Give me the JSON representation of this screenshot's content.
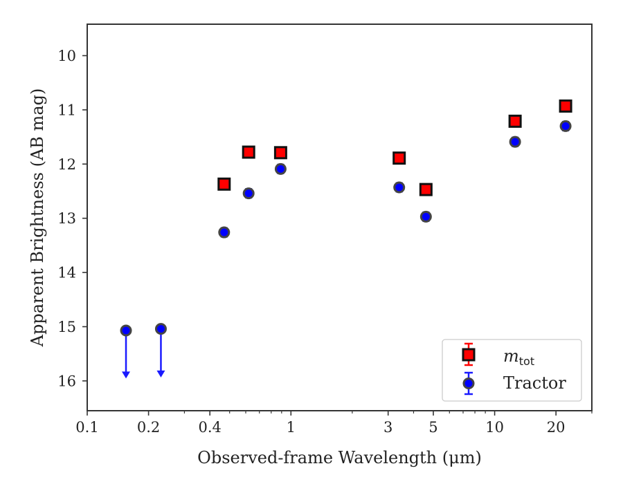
{
  "chart_data": {
    "type": "scatter",
    "xlabel": "Observed-frame Wavelength (μm)",
    "ylabel": "Apparent Brightness (AB mag)",
    "xscale": "log",
    "xlim": [
      0.1,
      30
    ],
    "ylim": [
      16.55,
      9.42
    ],
    "y_inverted": true,
    "grid": false,
    "legend_position": "bottom-right",
    "x_ticks": [
      0.1,
      0.2,
      0.4,
      1,
      3,
      5,
      10,
      20
    ],
    "x_tick_labels": [
      "0.1",
      "0.2",
      "0.4",
      "1",
      "3",
      "5",
      "10",
      "20"
    ],
    "y_ticks": [
      10,
      11,
      12,
      13,
      14,
      15,
      16
    ],
    "y_tick_labels": [
      "10",
      "11",
      "12",
      "13",
      "14",
      "15",
      "16"
    ],
    "series": [
      {
        "name": "m_tot",
        "legend_label_main": "m",
        "legend_label_sub": "tot",
        "marker": "square",
        "face_color": "#ff0000",
        "edge_color": "#111111",
        "error_color": "#ff0000",
        "x": [
          0.47,
          0.62,
          0.89,
          3.4,
          4.6,
          12.6,
          22.3
        ],
        "y": [
          12.37,
          11.78,
          11.79,
          11.89,
          12.47,
          11.21,
          10.93
        ],
        "yerr": [
          0.05,
          0.05,
          0.05,
          0.05,
          0.05,
          0.05,
          0.05
        ]
      },
      {
        "name": "Tractor",
        "marker": "circle",
        "face_color": "#0000ff",
        "edge_color": "#444444",
        "error_color": "#1a1aff",
        "x": [
          0.47,
          0.62,
          0.89,
          3.4,
          4.6,
          12.6,
          22.3
        ],
        "y": [
          13.26,
          12.54,
          12.09,
          12.43,
          12.97,
          11.59,
          11.3
        ],
        "yerr": [
          0.08,
          0.08,
          0.08,
          0.08,
          0.08,
          0.08,
          0.08
        ]
      },
      {
        "name": "Tractor upper limits",
        "marker": "circle-arrow",
        "face_color": "#0000ff",
        "edge_color": "#444444",
        "error_color": "#1a1aff",
        "x": [
          0.155,
          0.23
        ],
        "y": [
          15.07,
          15.04
        ],
        "limit_to": [
          15.93,
          15.91
        ]
      }
    ],
    "legend": [
      "m_tot",
      "Tractor"
    ]
  }
}
